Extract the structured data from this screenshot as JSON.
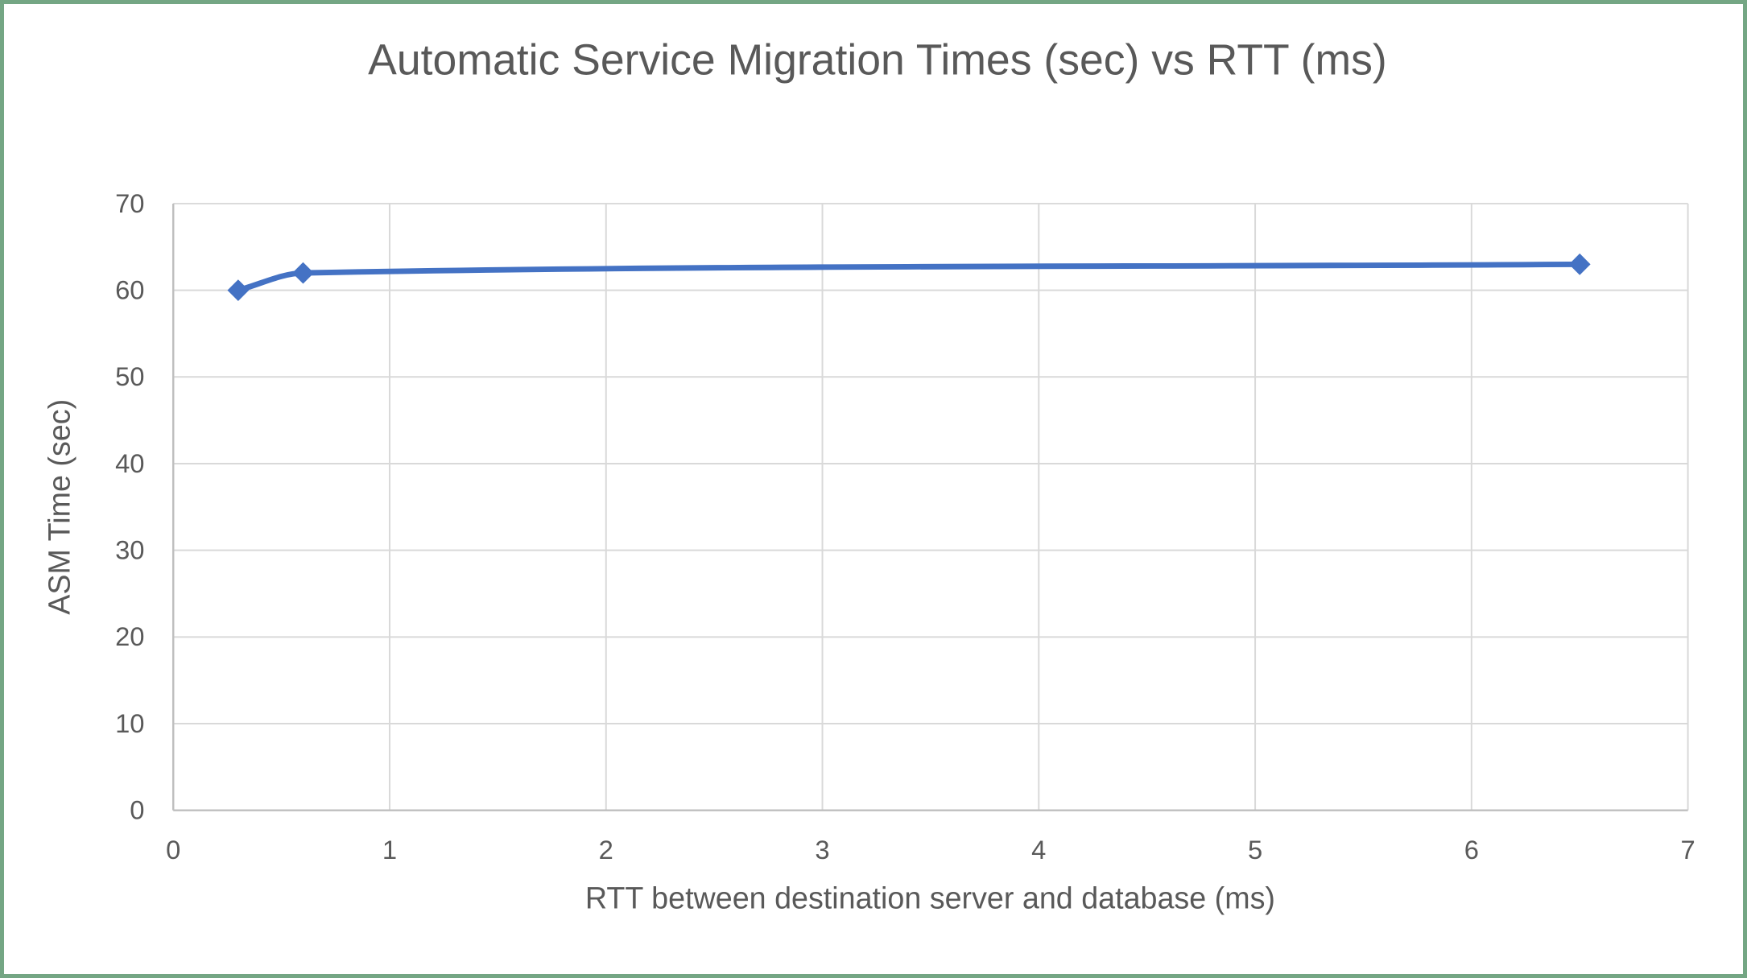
{
  "frame": {
    "border_color": "#74A684",
    "background": "#FFFFFF"
  },
  "chart_data": {
    "type": "line",
    "title": "Automatic Service Migration Times (sec) vs RTT (ms)",
    "xlabel": "RTT between destination server and database (ms)",
    "ylabel": "ASM Time (sec)",
    "x": [
      0.3,
      0.6,
      6.5
    ],
    "y": [
      60,
      62,
      63
    ],
    "xlim": [
      0,
      7
    ],
    "ylim": [
      0,
      70
    ],
    "x_ticks": [
      0,
      1,
      2,
      3,
      4,
      5,
      6,
      7
    ],
    "y_ticks": [
      0,
      10,
      20,
      30,
      40,
      50,
      60,
      70
    ],
    "grid": true,
    "legend": false,
    "smooth": true,
    "marker": "diamond",
    "line_color": "#4472C4",
    "marker_color": "#4472C4",
    "gridline_color": "#D9D9D9",
    "axis_line_color": "#BFBFBF",
    "text_color": "#595959"
  }
}
